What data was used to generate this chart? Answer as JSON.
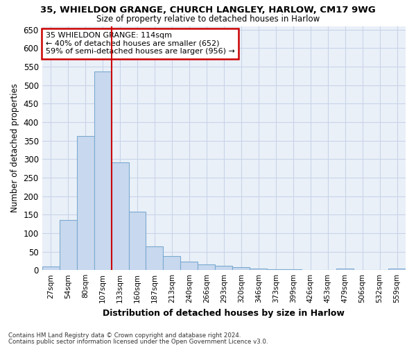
{
  "title1": "35, WHIELDON GRANGE, CHURCH LANGLEY, HARLOW, CM17 9WG",
  "title2": "Size of property relative to detached houses in Harlow",
  "xlabel": "Distribution of detached houses by size in Harlow",
  "ylabel": "Number of detached properties",
  "footer1": "Contains HM Land Registry data © Crown copyright and database right 2024.",
  "footer2": "Contains public sector information licensed under the Open Government Licence v3.0.",
  "annotation_line1": "35 WHIELDON GRANGE: 114sqm",
  "annotation_line2": "← 40% of detached houses are smaller (652)",
  "annotation_line3": "59% of semi-detached houses are larger (956) →",
  "bar_categories": [
    "27sqm",
    "54sqm",
    "80sqm",
    "107sqm",
    "133sqm",
    "160sqm",
    "187sqm",
    "213sqm",
    "240sqm",
    "266sqm",
    "293sqm",
    "320sqm",
    "346sqm",
    "373sqm",
    "399sqm",
    "426sqm",
    "453sqm",
    "479sqm",
    "506sqm",
    "532sqm",
    "559sqm"
  ],
  "bar_values": [
    10,
    135,
    362,
    537,
    292,
    158,
    65,
    38,
    22,
    15,
    12,
    8,
    5,
    3,
    2,
    1,
    0,
    4,
    0,
    1,
    4
  ],
  "bar_color": "#c8d8ee",
  "bar_edge_color": "#7aaad0",
  "grid_color": "#c8d4e8",
  "background_color": "#eaf0f8",
  "vline_color": "#cc0000",
  "vline_x_index": 3.5,
  "annotation_box_color": "#cc0000",
  "ylim": [
    0,
    660
  ],
  "yticks": [
    0,
    50,
    100,
    150,
    200,
    250,
    300,
    350,
    400,
    450,
    500,
    550,
    600,
    650
  ]
}
